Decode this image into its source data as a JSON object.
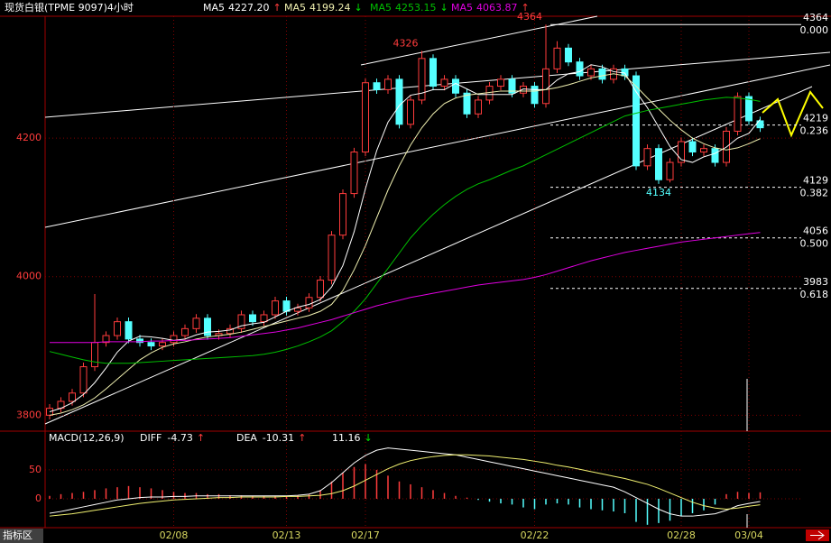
{
  "chart_data": [
    {
      "type": "candlestick",
      "title": "现货白银(TPME 9097)4小时",
      "categories": [
        null,
        null,
        null,
        null,
        null,
        null,
        null,
        null,
        null,
        null,
        null,
        "02/08",
        null,
        null,
        null,
        null,
        null,
        null,
        null,
        null,
        null,
        "02/13",
        null,
        null,
        null,
        null,
        null,
        null,
        "02/17",
        null,
        null,
        null,
        null,
        null,
        null,
        null,
        null,
        null,
        null,
        null,
        null,
        null,
        null,
        "02/22",
        null,
        null,
        null,
        null,
        null,
        null,
        null,
        null,
        null,
        null,
        null,
        null,
        "02/28",
        null,
        null,
        null,
        null,
        null,
        "03/04",
        null
      ],
      "open": [
        3800,
        3810,
        3820,
        3832,
        3870,
        3905,
        3915,
        3935,
        3910,
        3905,
        3900,
        3905,
        3915,
        3925,
        3940,
        3915,
        3918,
        3925,
        3945,
        3935,
        3945,
        3965,
        3950,
        3955,
        3970,
        3995,
        4060,
        4120,
        4180,
        4280,
        4270,
        4285,
        4220,
        4255,
        4315,
        4275,
        4285,
        4265,
        4235,
        4255,
        4275,
        4285,
        4265,
        4275,
        4250,
        4300,
        4330,
        4310,
        4290,
        4300,
        4285,
        4300,
        4290,
        4160,
        4185,
        4140,
        4165,
        4195,
        4180,
        4185,
        4165,
        4210,
        4260,
        4225
      ],
      "high": [
        3816,
        3826,
        3838,
        3876,
        3975,
        3921,
        3941,
        3941,
        3916,
        3911,
        3911,
        3921,
        3931,
        3946,
        3946,
        3924,
        3931,
        3951,
        3951,
        3951,
        3971,
        3971,
        3961,
        3976,
        4001,
        4066,
        4126,
        4186,
        4286,
        4286,
        4291,
        4291,
        4261,
        4326,
        4321,
        4291,
        4291,
        4271,
        4261,
        4281,
        4291,
        4291,
        4281,
        4281,
        4364,
        4340,
        4336,
        4316,
        4306,
        4306,
        4306,
        4306,
        4296,
        4191,
        4191,
        4171,
        4201,
        4201,
        4191,
        4191,
        4216,
        4266,
        4266,
        4231
      ],
      "low": [
        3794,
        3804,
        3814,
        3826,
        3864,
        3899,
        3909,
        3904,
        3899,
        3894,
        3894,
        3899,
        3909,
        3919,
        3909,
        3909,
        3912,
        3919,
        3929,
        3929,
        3939,
        3944,
        3944,
        3949,
        3964,
        3989,
        4054,
        4114,
        4174,
        4264,
        4264,
        4214,
        4214,
        4249,
        4269,
        4269,
        4259,
        4229,
        4229,
        4249,
        4269,
        4259,
        4259,
        4244,
        4244,
        4294,
        4304,
        4284,
        4284,
        4279,
        4279,
        4284,
        4154,
        4154,
        4134,
        4136,
        4159,
        4174,
        4174,
        4159,
        4159,
        4204,
        4219,
        4209
      ],
      "close": [
        3810,
        3820,
        3832,
        3870,
        3905,
        3915,
        3935,
        3910,
        3905,
        3900,
        3905,
        3915,
        3925,
        3940,
        3915,
        3918,
        3925,
        3945,
        3935,
        3945,
        3965,
        3950,
        3955,
        3970,
        3995,
        4060,
        4120,
        4180,
        4280,
        4270,
        4285,
        4220,
        4255,
        4315,
        4275,
        4285,
        4265,
        4235,
        4255,
        4275,
        4285,
        4265,
        4275,
        4250,
        4300,
        4330,
        4310,
        4290,
        4300,
        4285,
        4300,
        4290,
        4160,
        4185,
        4140,
        4165,
        4195,
        4180,
        4185,
        4165,
        4210,
        4260,
        4225,
        4215
      ],
      "up_color": "#ff3c3c",
      "down_color": "#54ffff",
      "ylim": [
        3777,
        4376
      ],
      "yticks": [
        3800,
        4000,
        4200
      ],
      "grid": true,
      "series": [
        {
          "name": "MA5",
          "color": "#ffffff",
          "legend_label": "4227.20",
          "arrow": "↑",
          "arrow_color": "#ff3c3c",
          "values": [
            3805,
            3810,
            3818,
            3830,
            3847,
            3868,
            3891,
            3907,
            3914,
            3913,
            3911,
            3908,
            3910,
            3916,
            3920,
            3921,
            3923,
            3929,
            3932,
            3934,
            3942,
            3950,
            3956,
            3960,
            3967,
            3985,
            4016,
            4065,
            4127,
            4182,
            4223,
            4247,
            4262,
            4265,
            4270,
            4270,
            4279,
            4271,
            4263,
            4263,
            4263,
            4263,
            4271,
            4270,
            4270,
            4284,
            4293,
            4296,
            4306,
            4303,
            4296,
            4294,
            4267,
            4244,
            4216,
            4188,
            4169,
            4165,
            4173,
            4178,
            4187,
            4200,
            4207,
            4227.2
          ]
        },
        {
          "name": "MA5",
          "color": "#f0f0b0",
          "legend_label": "4199.24",
          "arrow": "↓",
          "arrow_color": "#00e000",
          "values": [
            3800,
            3803,
            3808,
            3815,
            3825,
            3838,
            3852,
            3866,
            3880,
            3890,
            3898,
            3903,
            3906,
            3910,
            3913,
            3915,
            3917,
            3920,
            3924,
            3928,
            3932,
            3936,
            3940,
            3944,
            3950,
            3960,
            3980,
            4010,
            4045,
            4085,
            4125,
            4160,
            4190,
            4215,
            4235,
            4250,
            4258,
            4262,
            4264,
            4266,
            4268,
            4268,
            4268,
            4268,
            4270,
            4273,
            4277,
            4282,
            4287,
            4290,
            4293,
            4290,
            4275,
            4258,
            4242,
            4226,
            4212,
            4200,
            4192,
            4186,
            4183,
            4186,
            4192,
            4199.24
          ]
        },
        {
          "name": "MA5",
          "color": "#00c000",
          "legend_label": "4253.15",
          "arrow": "↓",
          "arrow_color": "#00e000",
          "values": [
            3892,
            3888,
            3884,
            3880,
            3877,
            3875,
            3875,
            3875,
            3876,
            3877,
            3878,
            3879,
            3880,
            3881,
            3882,
            3883,
            3884,
            3885,
            3886,
            3888,
            3891,
            3895,
            3900,
            3906,
            3913,
            3922,
            3935,
            3950,
            3968,
            3990,
            4012,
            4034,
            4056,
            4074,
            4090,
            4104,
            4116,
            4126,
            4134,
            4140,
            4147,
            4154,
            4160,
            4168,
            4176,
            4184,
            4192,
            4200,
            4208,
            4216,
            4224,
            4232,
            4236,
            4240,
            4243,
            4246,
            4249,
            4252,
            4255,
            4257,
            4259,
            4258,
            4256,
            4253.15
          ]
        },
        {
          "name": "MA5",
          "color": "#e000e0",
          "legend_label": "4063.87",
          "arrow": "↑",
          "arrow_color": "#ff3c3c",
          "values": [
            3905,
            3905,
            3905,
            3905,
            3905,
            3906,
            3906,
            3906,
            3906,
            3907,
            3907,
            3908,
            3908,
            3909,
            3910,
            3911,
            3912,
            3914,
            3916,
            3918,
            3920,
            3923,
            3926,
            3930,
            3934,
            3938,
            3943,
            3948,
            3953,
            3958,
            3962,
            3966,
            3970,
            3973,
            3976,
            3979,
            3982,
            3985,
            3988,
            3990,
            3992,
            3994,
            3996,
            3999,
            4003,
            4008,
            4013,
            4018,
            4023,
            4027,
            4031,
            4035,
            4038,
            4041,
            4044,
            4047,
            4050,
            4052,
            4054,
            4056,
            4058,
            4060,
            4062,
            4063.87
          ]
        }
      ],
      "fib": [
        {
          "value": 4364,
          "ratio": "0.000"
        },
        {
          "value": 4219,
          "ratio": "0.236"
        },
        {
          "value": 4129,
          "ratio": "0.382"
        },
        {
          "value": 4056,
          "ratio": "0.500"
        },
        {
          "value": 3983,
          "ratio": "0.618"
        }
      ],
      "annotations": [
        {
          "value": 4326,
          "color": "#ff3c3c"
        },
        {
          "value": 4364,
          "color": "#ff3c3c"
        },
        {
          "value": 4134,
          "color": "#54ffff"
        }
      ]
    },
    {
      "type": "macd",
      "title": "MACD(12,26,9)",
      "ylim": [
        -50,
        117
      ],
      "yticks": [
        0,
        50
      ],
      "hist": {
        "arrow": "↓",
        "pos_color": "#ff3c3c",
        "neg_color": "#54ffff",
        "values": [
          5,
          8,
          10,
          12,
          15,
          18,
          20,
          22,
          20,
          18,
          15,
          12,
          10,
          10,
          8,
          8,
          6,
          6,
          5,
          5,
          5,
          5,
          6,
          8,
          15,
          30,
          45,
          55,
          60,
          50,
          40,
          30,
          25,
          20,
          15,
          10,
          5,
          2,
          -2,
          -5,
          -8,
          -10,
          -15,
          -18,
          -10,
          -8,
          -10,
          -15,
          -18,
          -20,
          -22,
          -25,
          -40,
          -45,
          -42,
          -38,
          -30,
          -25,
          -20,
          -10,
          8,
          12,
          10,
          11.16
        ]
      },
      "series": [
        {
          "name": "DIFF",
          "color": "#ffffff",
          "arrow": "↑",
          "values": [
            -25,
            -22,
            -18,
            -14,
            -10,
            -6,
            -2,
            0,
            2,
            3,
            3,
            4,
            4,
            5,
            5,
            5,
            5,
            5,
            5,
            5,
            5,
            5,
            6,
            8,
            14,
            28,
            45,
            62,
            75,
            84,
            88,
            86,
            84,
            82,
            80,
            78,
            76,
            72,
            68,
            64,
            60,
            56,
            52,
            48,
            44,
            40,
            36,
            32,
            28,
            24,
            20,
            12,
            2,
            -8,
            -18,
            -26,
            -30,
            -30,
            -28,
            -26,
            -20,
            -12,
            -8,
            -4.73
          ]
        },
        {
          "name": "DEA",
          "color": "#f0f070",
          "arrow": "↑",
          "values": [
            -30,
            -28,
            -26,
            -23,
            -20,
            -17,
            -14,
            -11,
            -8,
            -6,
            -4,
            -2,
            -1,
            0,
            1,
            2,
            2,
            3,
            3,
            3,
            3,
            4,
            4,
            5,
            6,
            9,
            14,
            22,
            32,
            42,
            52,
            60,
            66,
            70,
            73,
            75,
            76,
            76,
            75,
            74,
            72,
            70,
            68,
            65,
            62,
            58,
            55,
            51,
            47,
            43,
            39,
            35,
            30,
            25,
            18,
            10,
            2,
            -6,
            -12,
            -16,
            -18,
            -16,
            -13,
            -10.31
          ]
        }
      ]
    }
  ],
  "toolbar": {
    "label": "指标区"
  }
}
